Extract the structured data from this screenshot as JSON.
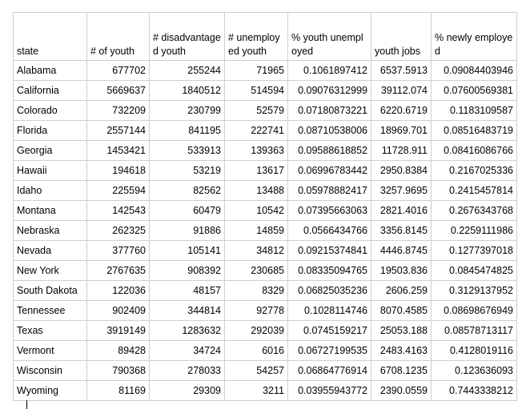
{
  "table": {
    "headers": [
      "state",
      "# of youth",
      "# disadvantaged youth",
      "# unemployed youth",
      "% youth unemployed",
      "youth jobs",
      "% newly employed"
    ],
    "rows": [
      [
        "Alabama",
        "677702",
        "255244",
        "71965",
        "0.1061897412",
        "6537.5913",
        "0.09084403946"
      ],
      [
        "California",
        "5669637",
        "1840512",
        "514594",
        "0.09076312999",
        "39112.074",
        "0.07600569381"
      ],
      [
        "Colorado",
        "732209",
        "230799",
        "52579",
        "0.07180873221",
        "6220.6719",
        "0.1183109587"
      ],
      [
        "Florida",
        "2557144",
        "841195",
        "222741",
        "0.08710538006",
        "18969.701",
        "0.08516483719"
      ],
      [
        "Georgia",
        "1453421",
        "533913",
        "139363",
        "0.09588618852",
        "11728.911",
        "0.08416086766"
      ],
      [
        "Hawaii",
        "194618",
        "53219",
        "13617",
        "0.06996783442",
        "2950.8384",
        "0.2167025336"
      ],
      [
        "Idaho",
        "225594",
        "82562",
        "13488",
        "0.05978882417",
        "3257.9695",
        "0.2415457814"
      ],
      [
        "Montana",
        "142543",
        "60479",
        "10542",
        "0.07395663063",
        "2821.4016",
        "0.2676343768"
      ],
      [
        "Nebraska",
        "262325",
        "91886",
        "14859",
        "0.0566434766",
        "3356.8145",
        "0.2259111986"
      ],
      [
        "Nevada",
        "377760",
        "105141",
        "34812",
        "0.09215374841",
        "4446.8745",
        "0.1277397018"
      ],
      [
        "New York",
        "2767635",
        "908392",
        "230685",
        "0.08335094765",
        "19503.836",
        "0.0845474825"
      ],
      [
        "South Dakota",
        "122036",
        "48157",
        "8329",
        "0.06825035236",
        "2606.259",
        "0.3129137952"
      ],
      [
        "Tennessee",
        "902409",
        "344814",
        "92778",
        "0.1028114746",
        "8070.4585",
        "0.08698676949"
      ],
      [
        "Texas",
        "3919149",
        "1283632",
        "292039",
        "0.0745159217",
        "25053.188",
        "0.08578713117"
      ],
      [
        "Vermont",
        "89428",
        "34724",
        "6016",
        "0.06727199535",
        "2483.4163",
        "0.4128019116"
      ],
      [
        "Wisconsin",
        "790368",
        "278033",
        "54257",
        "0.06864776914",
        "6708.1235",
        "0.123636093"
      ],
      [
        "Wyoming",
        "81169",
        "29309",
        "3211",
        "0.03955943772",
        "2390.0559",
        "0.7443338212"
      ]
    ]
  }
}
